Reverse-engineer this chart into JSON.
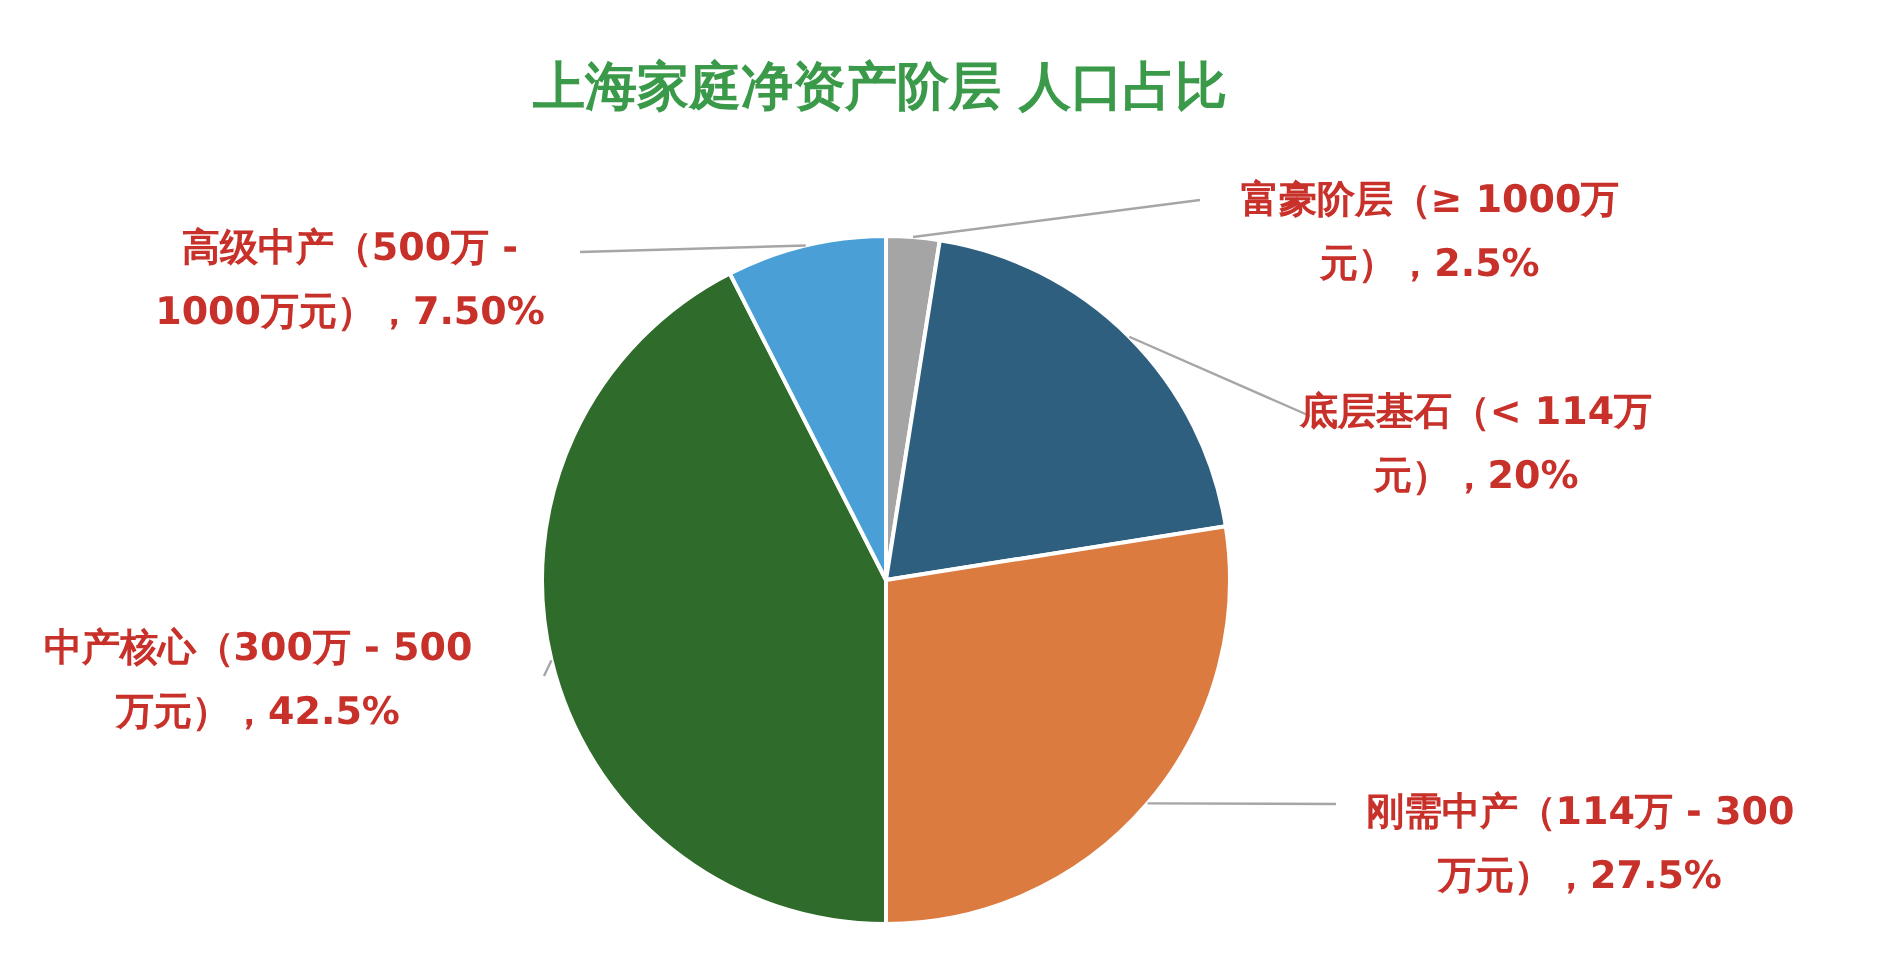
{
  "chart_data": {
    "type": "pie",
    "title": "上海家庭净资产阶层 人口占比",
    "categories": [
      "富豪阶层（≥ 1000万元）",
      "底层基石（< 114万元）",
      "刚需中产（114万 - 300万元）",
      "中产核心（300万 - 500万元）",
      "高级中产（500万 - 1000万元）"
    ],
    "values": [
      2.5,
      20,
      27.5,
      42.5,
      7.5
    ],
    "colors": [
      "#a5a5a5",
      "#2e5f7f",
      "#dc7b40",
      "#2f6b2a",
      "#4a9fd6"
    ],
    "value_labels": [
      "2.5%",
      "20%",
      "27.5%",
      "42.5%",
      "7.50%"
    ]
  }
}
